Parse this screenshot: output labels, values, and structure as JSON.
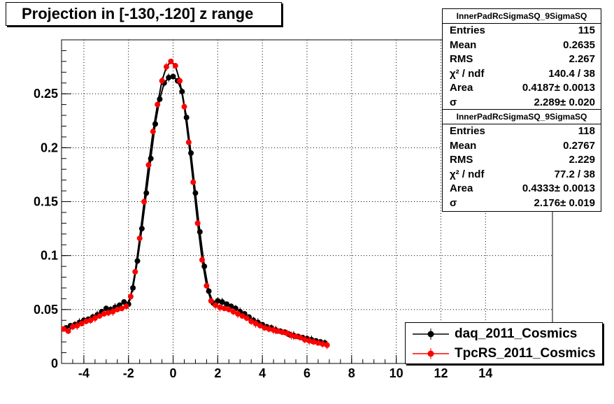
{
  "title": "Projection in [-130,-120] z range",
  "chart_data": {
    "type": "scatter",
    "xlim": [
      -5,
      17
    ],
    "ylim": [
      0,
      0.3
    ],
    "x_ticks": [
      -4,
      -2,
      0,
      2,
      4,
      6,
      8,
      10,
      12,
      14
    ],
    "x_tick_labels": [
      "-4",
      "-2",
      "0",
      "2",
      "4",
      "6",
      "8",
      "10",
      "12",
      "14"
    ],
    "y_ticks": [
      0,
      0.05,
      0.1,
      0.15,
      0.2,
      0.25
    ],
    "y_tick_labels": [
      "0",
      "0.05",
      "0.1",
      "0.15",
      "0.2",
      "0.25"
    ],
    "grid": true,
    "legend_position": "bottom-right",
    "series": [
      {
        "name": "daq_2011_Cosmics",
        "color": "#000000",
        "x": [
          -4.8,
          -4.6,
          -4.4,
          -4.2,
          -4.0,
          -3.8,
          -3.6,
          -3.4,
          -3.2,
          -3.0,
          -2.8,
          -2.6,
          -2.4,
          -2.2,
          -2.0,
          -1.8,
          -1.6,
          -1.4,
          -1.2,
          -1.0,
          -0.8,
          -0.6,
          -0.4,
          -0.2,
          0.0,
          0.2,
          0.4,
          0.6,
          0.8,
          1.0,
          1.2,
          1.4,
          1.6,
          1.8,
          2.0,
          2.2,
          2.4,
          2.6,
          2.8,
          3.0,
          3.2,
          3.4,
          3.6,
          3.8,
          4.0,
          4.2,
          4.4,
          4.6,
          4.8,
          5.0,
          5.2,
          5.4,
          5.6,
          5.8,
          6.0,
          6.2,
          6.4,
          6.6,
          6.8
        ],
        "y": [
          0.033,
          0.035,
          0.036,
          0.038,
          0.04,
          0.041,
          0.043,
          0.045,
          0.048,
          0.051,
          0.05,
          0.052,
          0.054,
          0.057,
          0.055,
          0.07,
          0.095,
          0.125,
          0.158,
          0.19,
          0.222,
          0.245,
          0.26,
          0.265,
          0.266,
          0.262,
          0.252,
          0.228,
          0.195,
          0.158,
          0.122,
          0.09,
          0.067,
          0.056,
          0.058,
          0.057,
          0.055,
          0.053,
          0.051,
          0.048,
          0.046,
          0.043,
          0.04,
          0.038,
          0.036,
          0.034,
          0.033,
          0.031,
          0.03,
          0.029,
          0.027,
          0.026,
          0.025,
          0.024,
          0.023,
          0.022,
          0.021,
          0.02,
          0.019
        ]
      },
      {
        "name": "TpcRS_2011_Cosmics",
        "color": "#ff0000",
        "x": [
          -4.9,
          -4.7,
          -4.5,
          -4.3,
          -4.1,
          -3.9,
          -3.7,
          -3.5,
          -3.3,
          -3.1,
          -2.9,
          -2.7,
          -2.5,
          -2.3,
          -2.1,
          -1.9,
          -1.7,
          -1.5,
          -1.3,
          -1.1,
          -0.9,
          -0.7,
          -0.5,
          -0.3,
          -0.1,
          0.1,
          0.3,
          0.5,
          0.7,
          0.9,
          1.1,
          1.3,
          1.5,
          1.7,
          1.9,
          2.1,
          2.3,
          2.5,
          2.7,
          2.9,
          3.1,
          3.3,
          3.5,
          3.7,
          3.9,
          4.1,
          4.3,
          4.5,
          4.7,
          4.9,
          5.1,
          5.3,
          5.5,
          5.7,
          5.9,
          6.1,
          6.3,
          6.5,
          6.7,
          6.9
        ],
        "y": [
          0.032,
          0.03,
          0.034,
          0.035,
          0.037,
          0.039,
          0.04,
          0.042,
          0.044,
          0.046,
          0.047,
          0.048,
          0.05,
          0.051,
          0.053,
          0.062,
          0.085,
          0.116,
          0.15,
          0.184,
          0.215,
          0.24,
          0.262,
          0.275,
          0.28,
          0.276,
          0.262,
          0.238,
          0.205,
          0.168,
          0.13,
          0.096,
          0.072,
          0.058,
          0.054,
          0.052,
          0.051,
          0.05,
          0.048,
          0.046,
          0.044,
          0.042,
          0.039,
          0.037,
          0.035,
          0.033,
          0.032,
          0.031,
          0.03,
          0.029,
          0.028,
          0.026,
          0.025,
          0.024,
          0.022,
          0.021,
          0.02,
          0.019,
          0.018,
          0.017
        ]
      }
    ]
  },
  "stats": [
    {
      "title": "InnerPadRcSigmaSQ_9SigmaSQ",
      "rows": [
        {
          "key": "Entries",
          "value": "115"
        },
        {
          "key": "Mean",
          "value": "0.2635"
        },
        {
          "key": "RMS",
          "value": "2.267"
        },
        {
          "key": "χ² / ndf",
          "value": "140.4 / 38"
        },
        {
          "key": "Area",
          "value": "0.4187± 0.0013"
        },
        {
          "key": "σ",
          "value": "2.289± 0.020"
        }
      ]
    },
    {
      "title": "InnerPadRcSigmaSQ_9SigmaSQ",
      "rows": [
        {
          "key": "Entries",
          "value": "118"
        },
        {
          "key": "Mean",
          "value": "0.2767"
        },
        {
          "key": "RMS",
          "value": "2.229"
        },
        {
          "key": "χ² / ndf",
          "value": "77.2 / 38"
        },
        {
          "key": "Area",
          "value": "0.4333± 0.0013"
        },
        {
          "key": "σ",
          "value": "2.176± 0.019"
        }
      ]
    }
  ]
}
